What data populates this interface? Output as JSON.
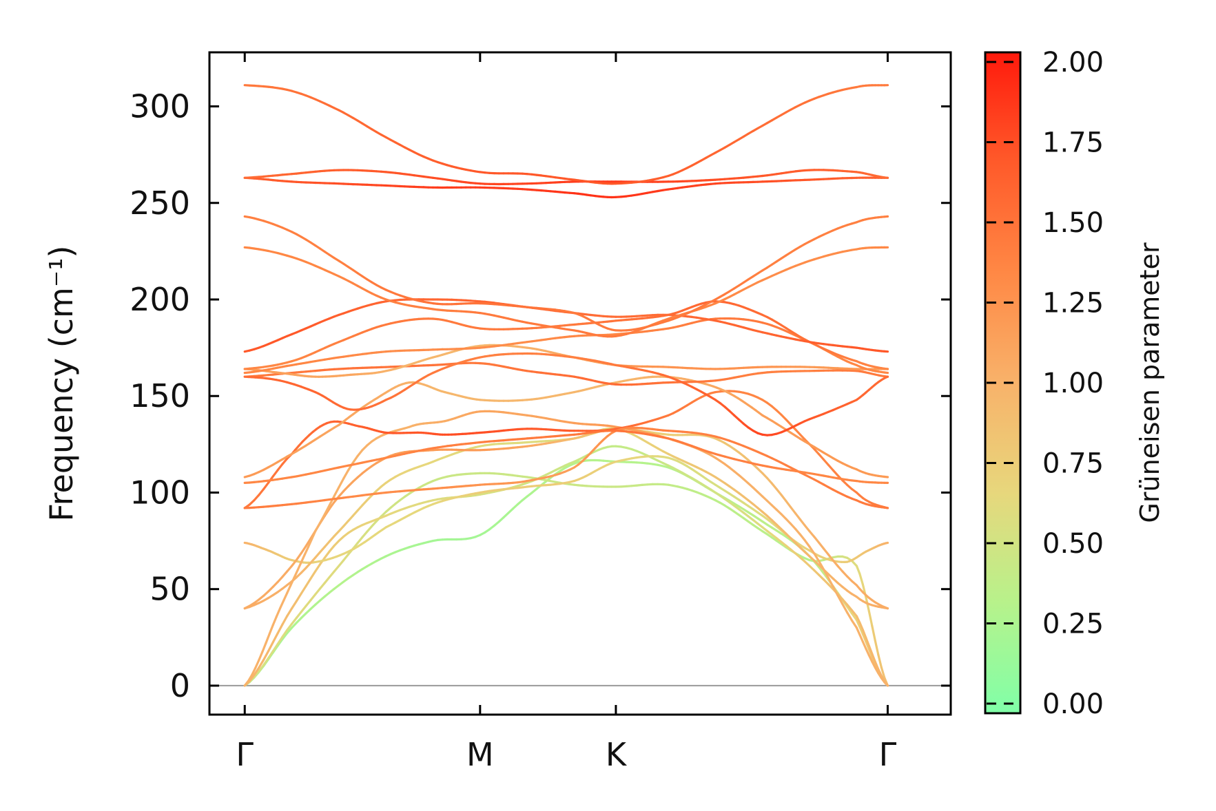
{
  "chart_data": {
    "type": "line",
    "title": "",
    "xlabel": "",
    "ylabel": "Frequency (cm⁻¹)",
    "ylim": [
      -15,
      328
    ],
    "yticks": [
      0,
      50,
      100,
      150,
      200,
      250,
      300
    ],
    "ytick_labels": [
      "0",
      "50",
      "100",
      "150",
      "200",
      "250",
      "300"
    ],
    "xlim": [
      -0.15,
      3.0
    ],
    "x_ticks": [
      {
        "label": "Γ",
        "x": 0
      },
      {
        "label": "M",
        "x": 1.0
      },
      {
        "label": "K",
        "x": 1.577
      },
      {
        "label": "Γ",
        "x": 2.732
      }
    ],
    "zero_line": 0,
    "colorbar": {
      "label": "Grüneisen parameter",
      "range": [
        -0.03,
        2.03
      ],
      "ticks": [
        0.0,
        0.25,
        0.5,
        0.75,
        1.0,
        1.25,
        1.5,
        1.75,
        2.0
      ],
      "tick_labels": [
        "0.00",
        "0.25",
        "0.50",
        "0.75",
        "1.00",
        "1.25",
        "1.50",
        "1.75",
        "2.00"
      ],
      "colors": [
        "#80ffa8",
        "#b7f28b",
        "#e7d77c",
        "#f8b26a",
        "#ff8845",
        "#ff5a2a",
        "#ff1a0c"
      ]
    },
    "series": [
      {
        "name": "band-1",
        "x": [
          0,
          0.2,
          0.4,
          0.6,
          0.8,
          1.0,
          1.2,
          1.4,
          1.577,
          1.8,
          2.0,
          2.2,
          2.4,
          2.6,
          2.732
        ],
        "y": [
          0,
          30,
          52,
          67,
          75,
          78,
          98,
          115,
          116,
          113,
          100,
          85,
          67,
          34,
          0
        ],
        "gamma": [
          0.15,
          0.25,
          0.3,
          0.25,
          0.2,
          0.2,
          0.25,
          0.3,
          0.3,
          0.3,
          0.35,
          0.35,
          0.3,
          0.7,
          0.9
        ]
      },
      {
        "name": "band-2",
        "x": [
          0,
          0.2,
          0.4,
          0.6,
          0.8,
          1.0,
          1.2,
          1.4,
          1.577,
          1.8,
          2.0,
          2.2,
          2.4,
          2.6,
          2.732
        ],
        "y": [
          0,
          32,
          62,
          90,
          106,
          110,
          108,
          104,
          103,
          104,
          96,
          80,
          65,
          62,
          0
        ],
        "gamma": [
          0.5,
          0.6,
          0.6,
          0.5,
          0.45,
          0.45,
          0.45,
          0.45,
          0.45,
          0.4,
          0.35,
          0.35,
          0.3,
          0.6,
          0.9
        ]
      },
      {
        "name": "band-3",
        "x": [
          0,
          0.2,
          0.4,
          0.6,
          0.8,
          1.0,
          1.2,
          1.4,
          1.577,
          1.8,
          2.0,
          2.2,
          2.4,
          2.6,
          2.732
        ],
        "y": [
          0,
          40,
          75,
          88,
          96,
          99,
          105,
          116,
          124,
          114,
          100,
          82,
          62,
          36,
          0
        ],
        "gamma": [
          1.0,
          0.9,
          0.75,
          0.65,
          0.6,
          0.55,
          0.5,
          0.45,
          0.4,
          0.45,
          0.5,
          0.6,
          0.8,
          0.9,
          1.0
        ]
      },
      {
        "name": "band-4",
        "x": [
          0,
          0.1,
          0.2,
          0.3,
          0.45,
          0.6,
          0.8,
          1.0,
          1.2,
          1.4,
          1.577,
          1.8,
          2.0,
          2.2,
          2.4,
          2.55,
          2.65,
          2.732
        ],
        "y": [
          74,
          70,
          65,
          64,
          70,
          82,
          94,
          100,
          103,
          106,
          116,
          118,
          104,
          88,
          70,
          64,
          70,
          74
        ],
        "gamma": [
          1.0,
          0.85,
          0.75,
          0.7,
          0.65,
          0.65,
          0.65,
          0.75,
          0.75,
          0.75,
          0.7,
          0.6,
          0.55,
          0.6,
          0.7,
          0.75,
          0.85,
          1.0
        ]
      },
      {
        "name": "band-5",
        "x": [
          0,
          0.2,
          0.4,
          0.6,
          0.8,
          1.0,
          1.2,
          1.4,
          1.577,
          1.8,
          2.0,
          2.2,
          2.4,
          2.6,
          2.732
        ],
        "y": [
          40,
          54,
          80,
          105,
          116,
          124,
          126,
          128,
          133,
          120,
          108,
          90,
          67,
          46,
          40
        ],
        "gamma": [
          1.05,
          1.0,
          0.8,
          0.7,
          0.65,
          0.6,
          0.6,
          0.6,
          0.65,
          0.75,
          0.85,
          0.9,
          0.95,
          1.0,
          1.05
        ]
      },
      {
        "name": "band-6",
        "x": [
          0,
          0.2,
          0.4,
          0.6,
          0.8,
          1.0,
          1.2,
          1.4,
          1.577,
          1.8,
          2.0,
          2.2,
          2.4,
          2.6,
          2.732
        ],
        "y": [
          40,
          62,
          98,
          118,
          122,
          122,
          124,
          128,
          133,
          130,
          128,
          110,
          80,
          52,
          40
        ],
        "gamma": [
          1.05,
          1.05,
          1.1,
          1.15,
          1.2,
          1.2,
          1.1,
          0.9,
          0.75,
          0.75,
          0.8,
          0.9,
          1.0,
          1.05,
          1.05
        ]
      },
      {
        "name": "band-7",
        "x": [
          0,
          0.15,
          0.3,
          0.5,
          0.7,
          0.85,
          1.0,
          1.2,
          1.4,
          1.577,
          1.8,
          2.0,
          2.2,
          2.4,
          2.6,
          2.732
        ],
        "y": [
          0,
          40,
          80,
          122,
          134,
          137,
          142,
          140,
          136,
          134,
          128,
          118,
          98,
          72,
          30,
          0
        ],
        "gamma": [
          1.0,
          1.0,
          1.0,
          1.0,
          1.0,
          1.05,
          1.1,
          1.1,
          1.15,
          1.2,
          1.1,
          1.05,
          1.0,
          1.0,
          1.0,
          1.0
        ]
      },
      {
        "name": "band-8",
        "x": [
          0,
          0.2,
          0.35,
          0.5,
          0.6,
          0.75,
          0.85,
          1.0,
          1.2,
          1.4,
          1.577,
          1.8,
          2.0,
          2.2,
          2.4,
          2.6,
          2.732
        ],
        "y": [
          92,
          120,
          136,
          134,
          131,
          131,
          130,
          131,
          133,
          132,
          133,
          140,
          152,
          148,
          125,
          100,
          92
        ],
        "gamma": [
          1.45,
          1.5,
          1.6,
          1.65,
          1.7,
          1.7,
          1.75,
          1.75,
          1.7,
          1.65,
          1.6,
          1.45,
          1.4,
          1.35,
          1.35,
          1.4,
          1.45
        ]
      },
      {
        "name": "band-9",
        "x": [
          0,
          0.2,
          0.4,
          0.6,
          0.8,
          1.0,
          1.2,
          1.4,
          1.577,
          1.8,
          2.0,
          2.2,
          2.4,
          2.6,
          2.732
        ],
        "y": [
          92,
          94,
          97,
          100,
          102,
          104,
          106,
          113,
          132,
          132,
          129,
          120,
          108,
          96,
          92
        ],
        "gamma": [
          1.45,
          1.4,
          1.35,
          1.3,
          1.3,
          1.25,
          1.2,
          1.15,
          1.3,
          1.4,
          1.4,
          1.4,
          1.4,
          1.45,
          1.45
        ]
      },
      {
        "name": "band-10",
        "x": [
          0,
          0.2,
          0.4,
          0.6,
          0.8,
          1.0,
          1.2,
          1.4,
          1.577,
          1.8,
          2.0,
          2.2,
          2.4,
          2.6,
          2.732
        ],
        "y": [
          105,
          108,
          113,
          118,
          123,
          126,
          128,
          130,
          132,
          128,
          120,
          114,
          110,
          106,
          105
        ],
        "gamma": [
          1.35,
          1.35,
          1.35,
          1.35,
          1.4,
          1.4,
          1.45,
          1.45,
          1.5,
          1.45,
          1.4,
          1.4,
          1.35,
          1.35,
          1.35
        ]
      },
      {
        "name": "band-11",
        "x": [
          0,
          0.2,
          0.4,
          0.55,
          0.7,
          0.85,
          1.0,
          1.2,
          1.4,
          1.577,
          1.75,
          1.9,
          2.05,
          2.2,
          2.4,
          2.6,
          2.732
        ],
        "y": [
          108,
          120,
          135,
          148,
          157,
          152,
          148,
          148,
          152,
          157,
          160,
          158,
          152,
          140,
          125,
          112,
          108
        ],
        "gamma": [
          1.2,
          1.15,
          1.1,
          1.05,
          1.0,
          0.95,
          0.95,
          0.95,
          0.95,
          0.95,
          1.0,
          1.05,
          1.1,
          1.15,
          1.2,
          1.2,
          1.2
        ]
      },
      {
        "name": "band-12",
        "x": [
          0,
          0.2,
          0.4,
          0.6,
          0.8,
          1.0,
          1.2,
          1.4,
          1.577,
          1.8,
          2.0,
          2.2,
          2.4,
          2.6,
          2.732
        ],
        "y": [
          160,
          162,
          164,
          165,
          166,
          167,
          163,
          160,
          156,
          157,
          158,
          162,
          163,
          163,
          160
        ],
        "gamma": [
          1.45,
          1.45,
          1.5,
          1.5,
          1.5,
          1.45,
          1.5,
          1.55,
          1.55,
          1.5,
          1.45,
          1.4,
          1.4,
          1.45,
          1.45
        ]
      },
      {
        "name": "band-13",
        "x": [
          0,
          0.15,
          0.3,
          0.45,
          0.6,
          0.8,
          1.0,
          1.2,
          1.4,
          1.577,
          1.8,
          2.0,
          2.2,
          2.4,
          2.6,
          2.732
        ],
        "y": [
          164,
          162,
          160,
          161,
          163,
          170,
          176,
          175,
          170,
          166,
          165,
          164,
          165,
          165,
          164,
          164
        ],
        "gamma": [
          1.15,
          1.15,
          1.1,
          1.1,
          1.0,
          0.95,
          0.95,
          1.0,
          1.1,
          1.2,
          1.25,
          1.25,
          1.25,
          1.2,
          1.2,
          1.15
        ]
      },
      {
        "name": "band-14",
        "x": [
          0,
          0.15,
          0.3,
          0.45,
          0.6,
          0.8,
          1.0,
          1.2,
          1.4,
          1.577,
          1.8,
          2.0,
          2.2,
          2.4,
          2.6,
          2.732
        ],
        "y": [
          160,
          158,
          152,
          143,
          148,
          162,
          170,
          172,
          170,
          166,
          160,
          148,
          130,
          138,
          148,
          160
        ],
        "gamma": [
          1.55,
          1.6,
          1.6,
          1.55,
          1.5,
          1.45,
          1.4,
          1.4,
          1.4,
          1.45,
          1.55,
          1.65,
          1.8,
          1.7,
          1.6,
          1.55
        ]
      },
      {
        "name": "band-15",
        "x": [
          0,
          0.2,
          0.4,
          0.6,
          0.8,
          1.0,
          1.2,
          1.4,
          1.577,
          1.8,
          2.0,
          2.2,
          2.4,
          2.6,
          2.732
        ],
        "y": [
          162,
          166,
          170,
          173,
          174,
          175,
          178,
          181,
          182,
          185,
          190,
          188,
          178,
          166,
          162
        ],
        "gamma": [
          1.35,
          1.35,
          1.35,
          1.3,
          1.3,
          1.3,
          1.3,
          1.35,
          1.35,
          1.4,
          1.45,
          1.45,
          1.4,
          1.35,
          1.35
        ]
      },
      {
        "name": "band-16",
        "x": [
          0,
          0.2,
          0.4,
          0.6,
          0.8,
          1.0,
          1.2,
          1.4,
          1.577,
          1.8,
          2.0,
          2.2,
          2.4,
          2.6,
          2.732
        ],
        "y": [
          164,
          168,
          178,
          187,
          190,
          185,
          185,
          187,
          189,
          192,
          199,
          192,
          178,
          168,
          164
        ],
        "gamma": [
          1.35,
          1.35,
          1.4,
          1.45,
          1.45,
          1.45,
          1.45,
          1.45,
          1.5,
          1.55,
          1.6,
          1.55,
          1.5,
          1.4,
          1.35
        ]
      },
      {
        "name": "band-17",
        "x": [
          0,
          0.2,
          0.4,
          0.6,
          0.8,
          1.0,
          1.2,
          1.4,
          1.577,
          1.8,
          2.0,
          2.2,
          2.4,
          2.6,
          2.732
        ],
        "y": [
          173,
          182,
          192,
          199,
          200,
          199,
          196,
          193,
          191,
          192,
          189,
          183,
          178,
          175,
          173
        ],
        "gamma": [
          1.7,
          1.7,
          1.65,
          1.6,
          1.6,
          1.6,
          1.6,
          1.55,
          1.55,
          1.55,
          1.6,
          1.6,
          1.65,
          1.7,
          1.7
        ]
      },
      {
        "name": "band-18",
        "x": [
          0,
          0.2,
          0.4,
          0.6,
          0.8,
          1.0,
          1.2,
          1.4,
          1.577,
          1.8,
          2.0,
          2.2,
          2.4,
          2.6,
          2.732
        ],
        "y": [
          227,
          222,
          212,
          200,
          195,
          193,
          188,
          184,
          181,
          190,
          198,
          210,
          220,
          226,
          227
        ],
        "gamma": [
          1.35,
          1.35,
          1.35,
          1.4,
          1.4,
          1.45,
          1.45,
          1.45,
          1.45,
          1.4,
          1.35,
          1.3,
          1.3,
          1.3,
          1.35
        ]
      },
      {
        "name": "band-19",
        "x": [
          0,
          0.2,
          0.4,
          0.6,
          0.8,
          1.0,
          1.2,
          1.4,
          1.577,
          1.8,
          2.0,
          2.2,
          2.4,
          2.6,
          2.732
        ],
        "y": [
          243,
          235,
          220,
          205,
          198,
          198,
          196,
          193,
          184,
          189,
          200,
          215,
          230,
          240,
          243
        ],
        "gamma": [
          1.4,
          1.4,
          1.4,
          1.45,
          1.5,
          1.5,
          1.5,
          1.45,
          1.45,
          1.45,
          1.45,
          1.4,
          1.4,
          1.4,
          1.4
        ]
      },
      {
        "name": "band-20",
        "x": [
          0,
          0.2,
          0.4,
          0.6,
          0.8,
          1.0,
          1.2,
          1.4,
          1.577,
          1.8,
          2.0,
          2.2,
          2.4,
          2.6,
          2.732
        ],
        "y": [
          263,
          261,
          260,
          259,
          258,
          258,
          257,
          255,
          253,
          257,
          260,
          261,
          262,
          263,
          263
        ],
        "gamma": [
          1.65,
          1.7,
          1.75,
          1.8,
          1.85,
          1.85,
          1.85,
          1.9,
          1.9,
          1.85,
          1.8,
          1.75,
          1.7,
          1.65,
          1.65
        ]
      },
      {
        "name": "band-21",
        "x": [
          0,
          0.2,
          0.4,
          0.6,
          0.8,
          1.0,
          1.2,
          1.4,
          1.577,
          1.8,
          2.0,
          2.2,
          2.4,
          2.6,
          2.732
        ],
        "y": [
          263,
          265,
          267,
          266,
          263,
          260,
          260,
          261,
          261,
          261,
          262,
          264,
          267,
          266,
          263
        ],
        "gamma": [
          1.55,
          1.6,
          1.65,
          1.7,
          1.75,
          1.8,
          1.8,
          1.85,
          1.85,
          1.8,
          1.75,
          1.7,
          1.65,
          1.6,
          1.55
        ]
      },
      {
        "name": "band-22",
        "x": [
          0,
          0.2,
          0.4,
          0.6,
          0.8,
          1.0,
          1.2,
          1.4,
          1.577,
          1.8,
          2.0,
          2.2,
          2.4,
          2.6,
          2.732
        ],
        "y": [
          311,
          308,
          298,
          284,
          272,
          266,
          265,
          262,
          260,
          264,
          276,
          290,
          303,
          310,
          311
        ],
        "gamma": [
          1.45,
          1.5,
          1.55,
          1.6,
          1.65,
          1.7,
          1.7,
          1.7,
          1.7,
          1.65,
          1.6,
          1.55,
          1.5,
          1.45,
          1.45
        ]
      }
    ]
  }
}
